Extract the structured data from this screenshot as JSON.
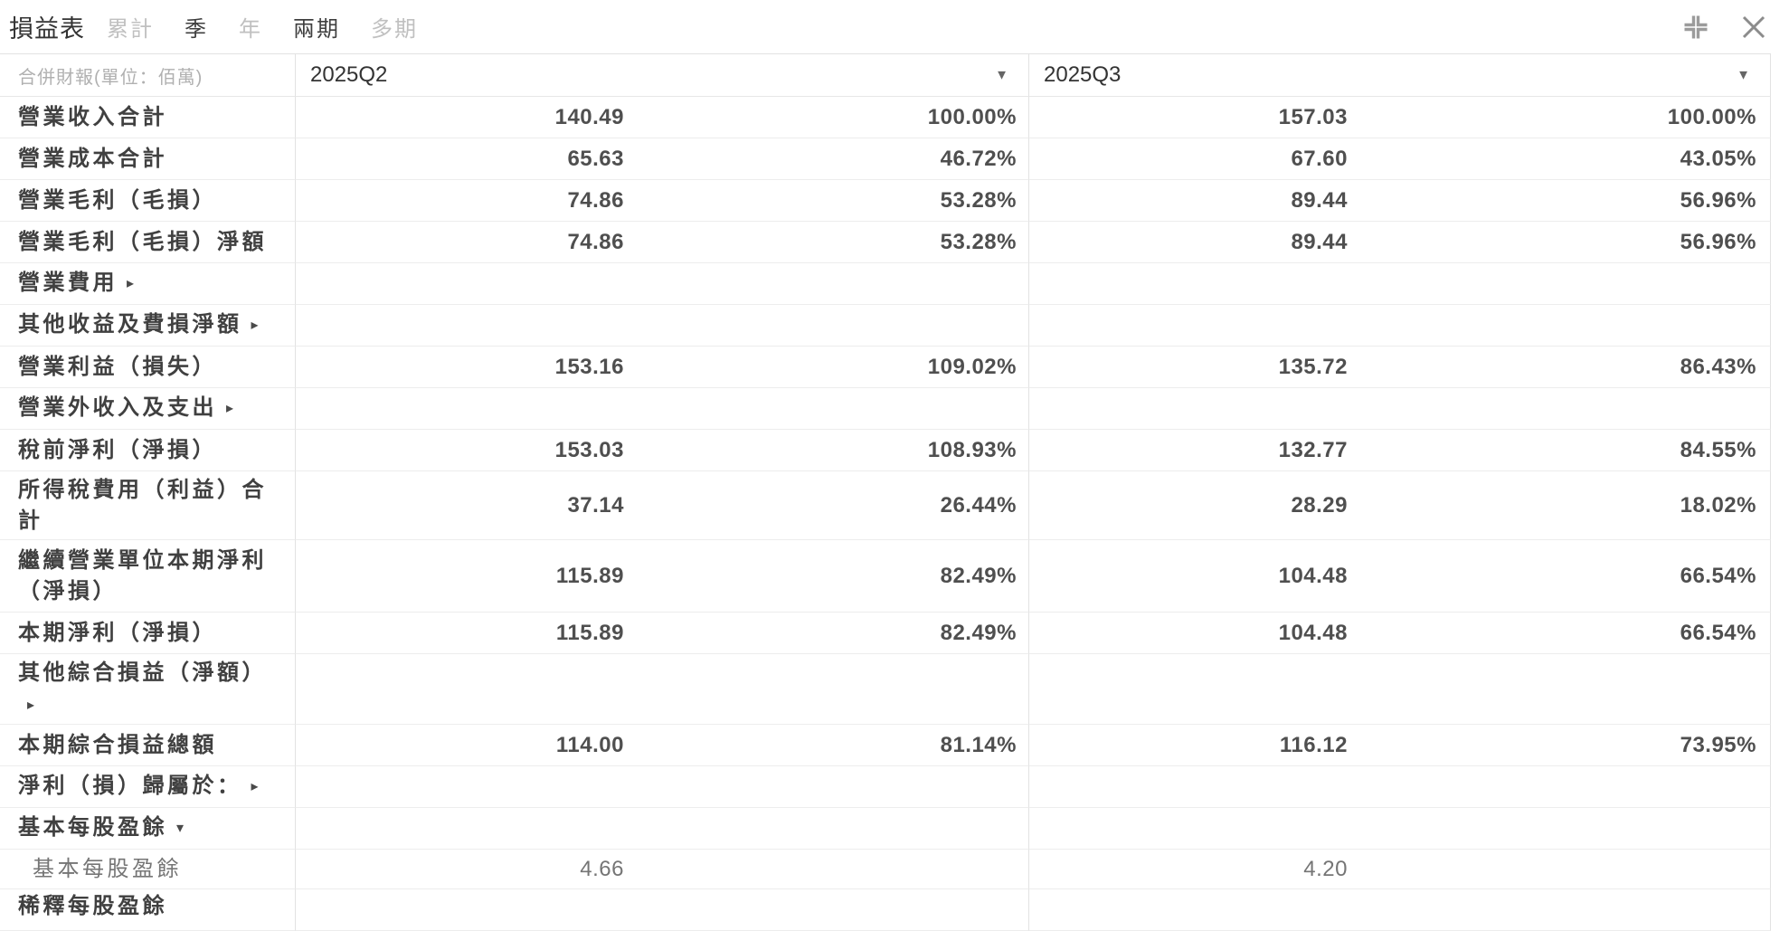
{
  "header": {
    "title": "損益表",
    "tabs": [
      {
        "label": "累計",
        "active": false
      },
      {
        "label": "季",
        "active": true
      },
      {
        "label": "年",
        "active": false
      },
      {
        "label": "兩期",
        "active": true
      },
      {
        "label": "多期",
        "active": false
      }
    ],
    "icons": {
      "collapse": "exit-fullscreen",
      "close": "close"
    }
  },
  "table": {
    "corner_label": "合併財報(單位：佰萬)",
    "columns": [
      "2025Q2",
      "2025Q3"
    ],
    "rows": [
      {
        "label": "營業收入合計",
        "arrow": "",
        "q2": "140.49",
        "q2_pct": "100.00%",
        "q3": "157.03",
        "q3_pct": "100.00%"
      },
      {
        "label": "營業成本合計",
        "arrow": "",
        "q2": "65.63",
        "q2_pct": "46.72%",
        "q3": "67.60",
        "q3_pct": "43.05%"
      },
      {
        "label": "營業毛利（毛損）",
        "arrow": "",
        "q2": "74.86",
        "q2_pct": "53.28%",
        "q3": "89.44",
        "q3_pct": "56.96%"
      },
      {
        "label": "營業毛利（毛損）淨額",
        "arrow": "",
        "q2": "74.86",
        "q2_pct": "53.28%",
        "q3": "89.44",
        "q3_pct": "56.96%"
      },
      {
        "label": "營業費用",
        "arrow": "right",
        "q2": "",
        "q2_pct": "",
        "q3": "",
        "q3_pct": ""
      },
      {
        "label": "其他收益及費損淨額",
        "arrow": "right",
        "q2": "",
        "q2_pct": "",
        "q3": "",
        "q3_pct": ""
      },
      {
        "label": "營業利益（損失）",
        "arrow": "",
        "q2": "153.16",
        "q2_pct": "109.02%",
        "q3": "135.72",
        "q3_pct": "86.43%"
      },
      {
        "label": "營業外收入及支出",
        "arrow": "right",
        "q2": "",
        "q2_pct": "",
        "q3": "",
        "q3_pct": ""
      },
      {
        "label": "稅前淨利（淨損）",
        "arrow": "",
        "q2": "153.03",
        "q2_pct": "108.93%",
        "q3": "132.77",
        "q3_pct": "84.55%"
      },
      {
        "label": "所得稅費用（利益）合計",
        "arrow": "",
        "q2": "37.14",
        "q2_pct": "26.44%",
        "q3": "28.29",
        "q3_pct": "18.02%"
      },
      {
        "label": "繼續營業單位本期淨利（淨損）",
        "arrow": "",
        "q2": "115.89",
        "q2_pct": "82.49%",
        "q3": "104.48",
        "q3_pct": "66.54%"
      },
      {
        "label": "本期淨利（淨損）",
        "arrow": "",
        "q2": "115.89",
        "q2_pct": "82.49%",
        "q3": "104.48",
        "q3_pct": "66.54%"
      },
      {
        "label": "其他綜合損益（淨額）",
        "arrow": "right",
        "q2": "",
        "q2_pct": "",
        "q3": "",
        "q3_pct": ""
      },
      {
        "label": "本期綜合損益總額",
        "arrow": "",
        "q2": "114.00",
        "q2_pct": "81.14%",
        "q3": "116.12",
        "q3_pct": "73.95%"
      },
      {
        "label": "淨利（損）歸屬於：",
        "arrow": "right",
        "q2": "",
        "q2_pct": "",
        "q3": "",
        "q3_pct": ""
      },
      {
        "label": "基本每股盈餘",
        "arrow": "down",
        "q2": "",
        "q2_pct": "",
        "q3": "",
        "q3_pct": ""
      },
      {
        "label": "基本每股盈餘",
        "indent": true,
        "arrow": "",
        "q2": "4.66",
        "q2_pct": "",
        "q3": "4.20",
        "q3_pct": ""
      },
      {
        "label": "稀釋每股盈餘",
        "arrow": "",
        "q2": "",
        "q2_pct": "",
        "q3": "",
        "q3_pct": ""
      }
    ]
  },
  "colors": {
    "accent_text": "#404040",
    "muted_text": "#bfbfbf",
    "grid_line": "#e2e2e2"
  }
}
